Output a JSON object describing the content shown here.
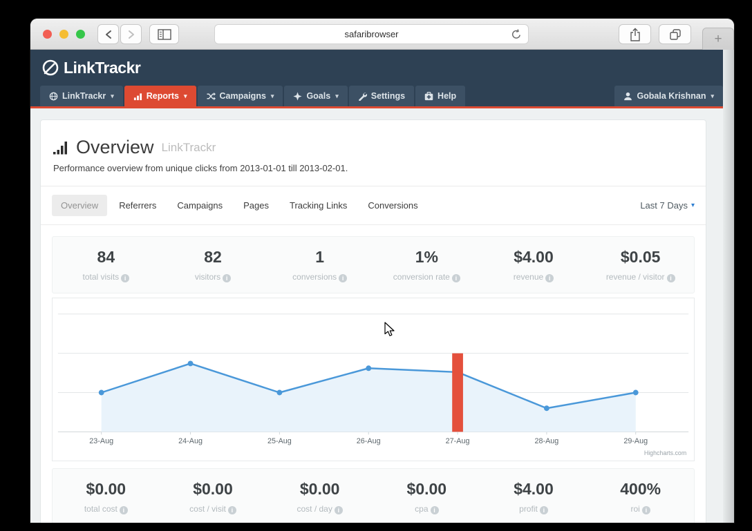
{
  "browser": {
    "url": "safaribrowser",
    "new_tab_glyph": "+"
  },
  "icons": {
    "caret": "▾",
    "info": "i"
  },
  "brand": {
    "name": "LinkTrackr"
  },
  "nav": {
    "items": [
      {
        "label": "LinkTrackr",
        "caret": true
      },
      {
        "label": "Reports",
        "caret": true,
        "active": true
      },
      {
        "label": "Campaigns",
        "caret": true
      },
      {
        "label": "Goals",
        "caret": true
      },
      {
        "label": "Settings",
        "caret": false
      },
      {
        "label": "Help",
        "caret": false
      }
    ],
    "user": {
      "name": "Gobala Krishnan"
    }
  },
  "header": {
    "title": "Overview",
    "title_suffix": "LinkTrackr",
    "subtitle": "Performance overview from unique clicks from 2013-01-01 till 2013-02-01."
  },
  "tabs": {
    "items": [
      "Overview",
      "Referrers",
      "Campaigns",
      "Pages",
      "Tracking Links",
      "Conversions"
    ],
    "active_index": 0,
    "range_label": "Last 7 Days"
  },
  "stats_top": [
    {
      "value": "84",
      "label": "total visits"
    },
    {
      "value": "82",
      "label": "visitors"
    },
    {
      "value": "1",
      "label": "conversions"
    },
    {
      "value": "1%",
      "label": "conversion rate"
    },
    {
      "value": "$4.00",
      "label": "revenue"
    },
    {
      "value": "$0.05",
      "label": "revenue / visitor"
    }
  ],
  "stats_bottom": [
    {
      "value": "$0.00",
      "label": "total cost"
    },
    {
      "value": "$0.00",
      "label": "cost / visit"
    },
    {
      "value": "$0.00",
      "label": "cost / day"
    },
    {
      "value": "$0.00",
      "label": "cpa"
    },
    {
      "value": "$4.00",
      "label": "profit"
    },
    {
      "value": "400%",
      "label": "roi"
    }
  ],
  "chart_data": {
    "type": "area",
    "title": "",
    "xlabel": "",
    "ylabel": "",
    "categories": [
      "23-Aug",
      "24-Aug",
      "25-Aug",
      "26-Aug",
      "27-Aug",
      "28-Aug",
      "29-Aug"
    ],
    "values": [
      5,
      8.7,
      5,
      8.1,
      7.6,
      3,
      5
    ],
    "ylim": [
      0,
      15
    ],
    "gridline_step": 5,
    "grid": true,
    "legend": "none",
    "line_color": "#4a98d9",
    "fill_color": "#e9f3fb",
    "marker_band": {
      "category": "27-Aug",
      "value": 10,
      "color": "#e4503c"
    },
    "credit": "Highcharts.com"
  },
  "colors": {
    "navbar_navy": "#2e4154",
    "accent_red": "#dd4a32",
    "page_bg": "#eef1f2"
  }
}
